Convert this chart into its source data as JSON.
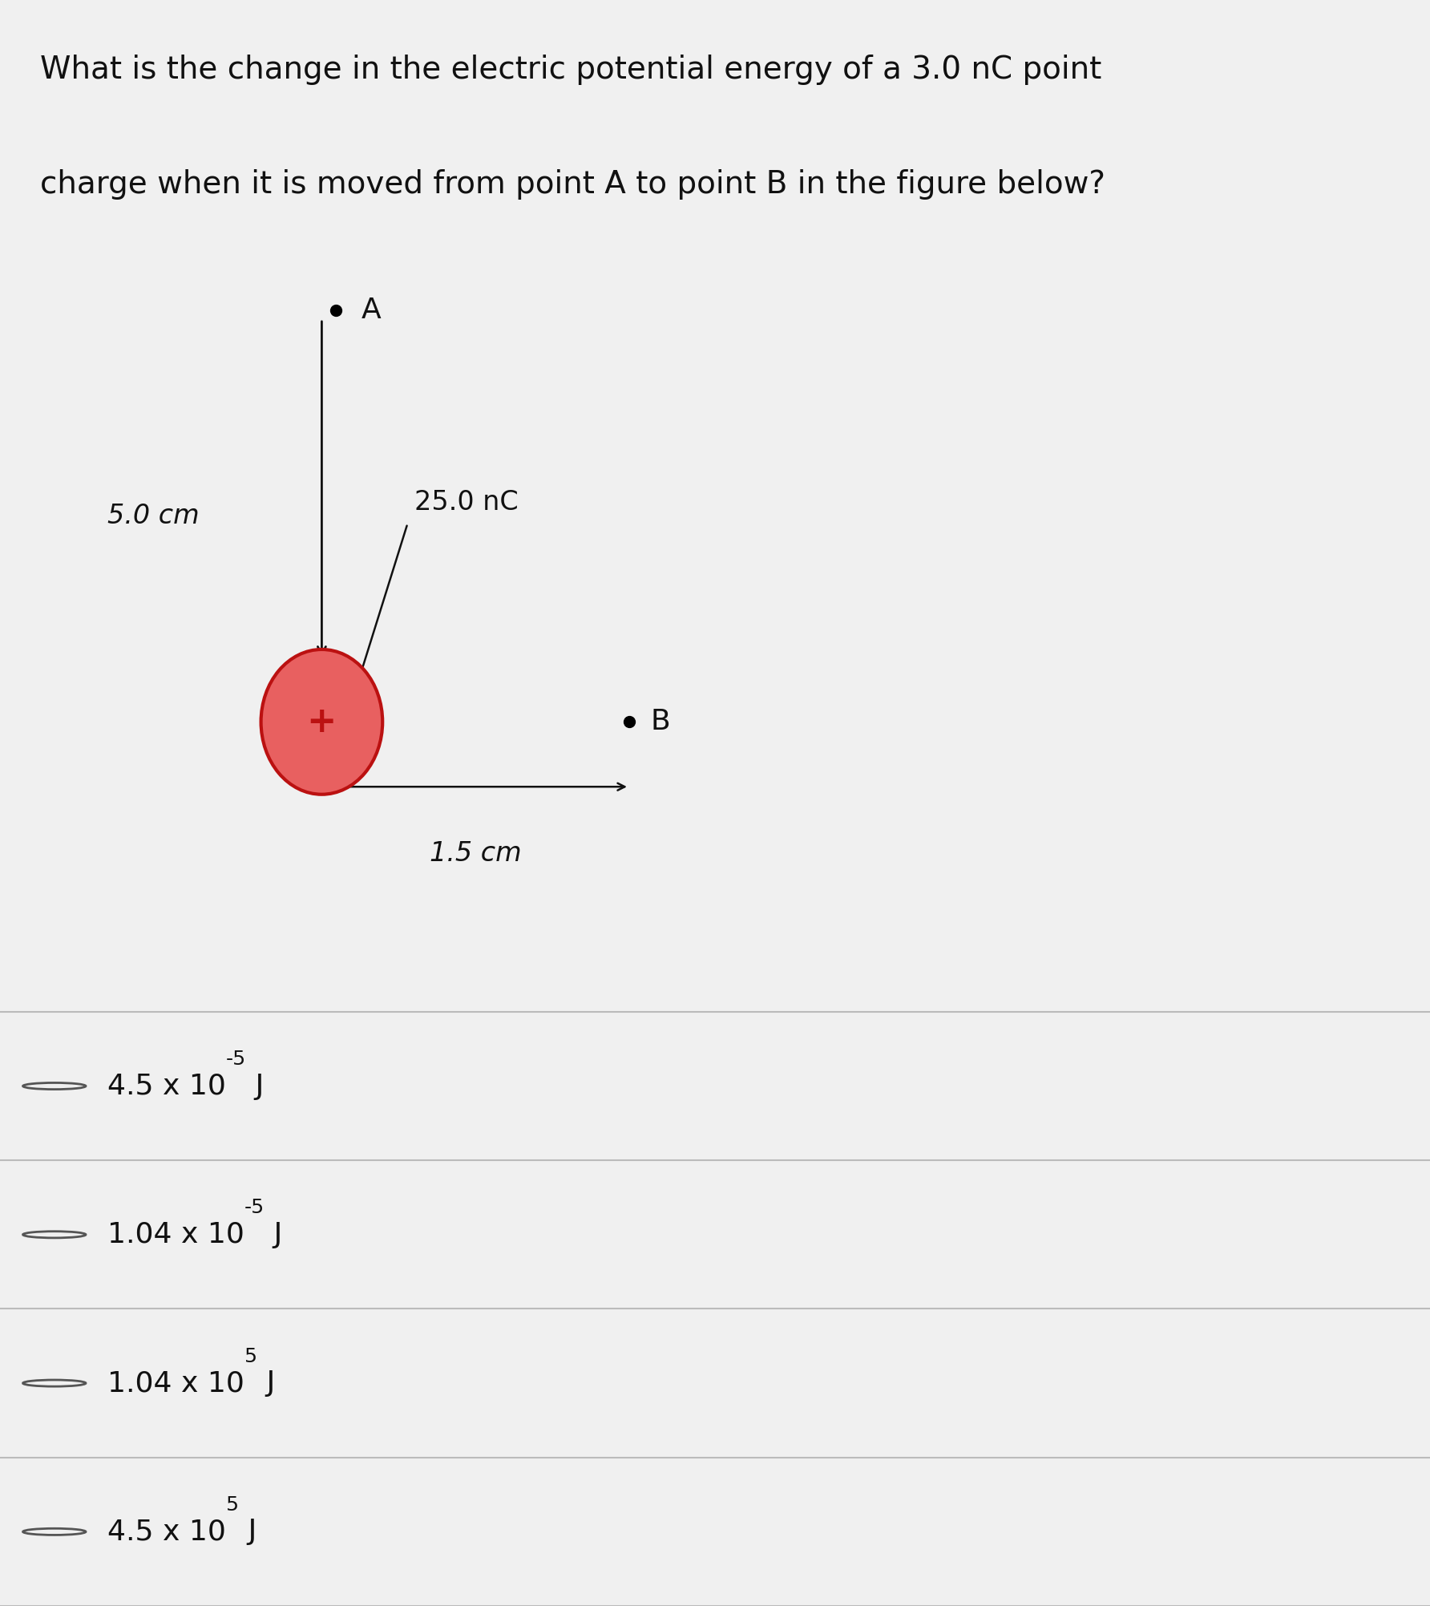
{
  "title_line1": "What is the change in the electric potential energy of a 3.0 nC point",
  "title_line2": "charge when it is moved from point A to point B in the figure below?",
  "title_fontsize": 28,
  "bg_color": "#f0f0f0",
  "label_5cm": "5.0 cm",
  "label_15cm": "1.5 cm",
  "label_25nc": "25.0 nC",
  "label_A": "A",
  "label_B": "B",
  "choices_main": [
    "4.5 x 10",
    "1.04 x 10",
    "1.04 x 10",
    "4.5 x 10"
  ],
  "choices_exp": [
    "-5",
    "-5",
    "5",
    "5"
  ],
  "choices_suffix": [
    " J",
    " J",
    " J",
    " J"
  ],
  "choice_fontsize": 26,
  "charge_color_face": "#e86060",
  "charge_color_edge": "#bb1111",
  "divider_color": "#bbbbbb",
  "text_color": "#111111",
  "arrow_color": "#111111"
}
